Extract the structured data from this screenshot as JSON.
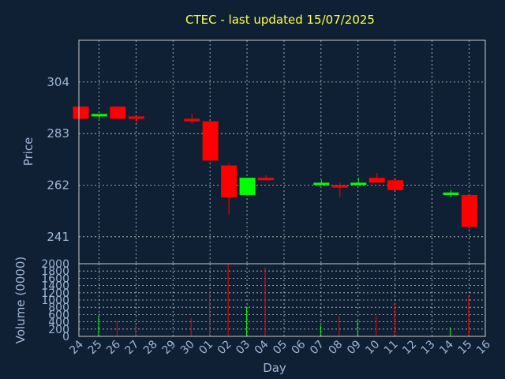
{
  "chart_data": [
    {
      "type": "candlestick",
      "title": "CTEC - last updated 15/07/2025",
      "ylabel": "Price",
      "ylim": [
        230,
        321
      ],
      "yticks": [
        241,
        262,
        283,
        304
      ],
      "grid": true,
      "colors": {
        "up": "#00ff00",
        "down": "#ff0000"
      },
      "categories": [
        "24",
        "25",
        "26",
        "27",
        "28",
        "29",
        "30",
        "01",
        "02",
        "03",
        "04",
        "05",
        "06",
        "07",
        "08",
        "09",
        "10",
        "11",
        "12",
        "13",
        "14",
        "15",
        "16"
      ],
      "candles": [
        {
          "day": "24",
          "open": 294,
          "high": 294,
          "low": 289,
          "close": 289
        },
        {
          "day": "25",
          "open": 290,
          "high": 291,
          "low": 289,
          "close": 291
        },
        {
          "day": "26",
          "open": 294,
          "high": 294,
          "low": 289,
          "close": 289
        },
        {
          "day": "27",
          "open": 290,
          "high": 290,
          "low": 287,
          "close": 289
        },
        {
          "day": "30",
          "open": 289,
          "high": 291,
          "low": 287,
          "close": 288
        },
        {
          "day": "01",
          "open": 288,
          "high": 288,
          "low": 272,
          "close": 272
        },
        {
          "day": "02",
          "open": 270,
          "high": 271,
          "low": 250,
          "close": 257
        },
        {
          "day": "03",
          "open": 258,
          "high": 265,
          "low": 258,
          "close": 265
        },
        {
          "day": "04",
          "open": 265,
          "high": 266,
          "low": 264,
          "close": 264
        },
        {
          "day": "07",
          "open": 262,
          "high": 264,
          "low": 262,
          "close": 263
        },
        {
          "day": "08",
          "open": 262,
          "high": 263,
          "low": 257,
          "close": 261
        },
        {
          "day": "09",
          "open": 262,
          "high": 265,
          "low": 262,
          "close": 263
        },
        {
          "day": "10",
          "open": 265,
          "high": 267,
          "low": 263,
          "close": 263
        },
        {
          "day": "11",
          "open": 264,
          "high": 264,
          "low": 260,
          "close": 260
        },
        {
          "day": "14",
          "open": 258,
          "high": 260,
          "low": 257,
          "close": 259
        },
        {
          "day": "15",
          "open": 258,
          "high": 258,
          "low": 244,
          "close": 245
        }
      ]
    },
    {
      "type": "bar",
      "ylabel": "Volume (0000)",
      "xlabel": "Day",
      "ylim": [
        0,
        2000
      ],
      "yticks": [
        0,
        200,
        400,
        600,
        800,
        1000,
        1200,
        1400,
        1600,
        1800,
        2000
      ],
      "categories": [
        "24",
        "25",
        "26",
        "27",
        "28",
        "29",
        "30",
        "01",
        "02",
        "03",
        "04",
        "05",
        "06",
        "07",
        "08",
        "09",
        "10",
        "11",
        "12",
        "13",
        "14",
        "15",
        "16"
      ],
      "bars": [
        {
          "day": "25",
          "value": 560,
          "direction": "up"
        },
        {
          "day": "26",
          "value": 420,
          "direction": "down"
        },
        {
          "day": "27",
          "value": 320,
          "direction": "down"
        },
        {
          "day": "30",
          "value": 500,
          "direction": "down"
        },
        {
          "day": "01",
          "value": 1250,
          "direction": "down"
        },
        {
          "day": "02",
          "value": 2000,
          "direction": "down"
        },
        {
          "day": "03",
          "value": 820,
          "direction": "up"
        },
        {
          "day": "04",
          "value": 1900,
          "direction": "down"
        },
        {
          "day": "07",
          "value": 310,
          "direction": "up"
        },
        {
          "day": "08",
          "value": 560,
          "direction": "down"
        },
        {
          "day": "09",
          "value": 440,
          "direction": "up"
        },
        {
          "day": "10",
          "value": 560,
          "direction": "down"
        },
        {
          "day": "11",
          "value": 880,
          "direction": "down"
        },
        {
          "day": "14",
          "value": 250,
          "direction": "up"
        },
        {
          "day": "15",
          "value": 1100,
          "direction": "down"
        }
      ]
    }
  ]
}
